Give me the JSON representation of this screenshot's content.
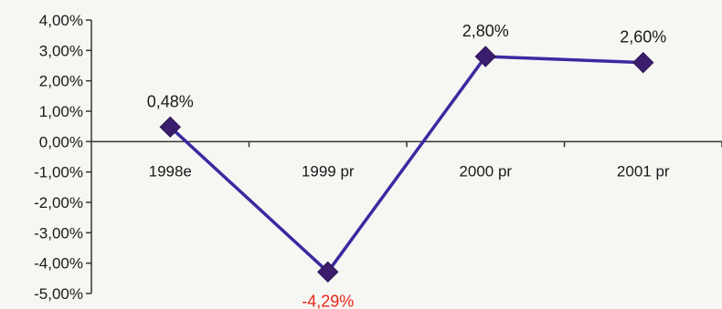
{
  "chart_data": {
    "type": "line",
    "categories": [
      "1998e",
      "1999 pr",
      "2000 pr",
      "2001 pr"
    ],
    "values": [
      0.48,
      -4.29,
      2.8,
      2.6
    ],
    "data_labels": [
      "0,48%",
      "-4,29%",
      "2,80%",
      "2,60%"
    ],
    "y_ticks": [
      {
        "value": 4,
        "label": "4,00%"
      },
      {
        "value": 3,
        "label": "3,00%"
      },
      {
        "value": 2,
        "label": "2,00%"
      },
      {
        "value": 1,
        "label": "1,00%"
      },
      {
        "value": 0,
        "label": "0,00%"
      },
      {
        "value": -1,
        "label": "-1,00%"
      },
      {
        "value": -2,
        "label": "-2,00%"
      },
      {
        "value": -3,
        "label": "-3,00%"
      },
      {
        "value": -4,
        "label": "-4,00%"
      },
      {
        "value": -5,
        "label": "-5,00%"
      }
    ],
    "ylim": [
      -5,
      4
    ],
    "grid": false,
    "title": "",
    "xlabel": "",
    "ylabel": "",
    "colors": {
      "line": "#3a2aa0",
      "marker": "#3b1d6e",
      "axis": "#333333",
      "negative_label": "#e8261a"
    }
  }
}
